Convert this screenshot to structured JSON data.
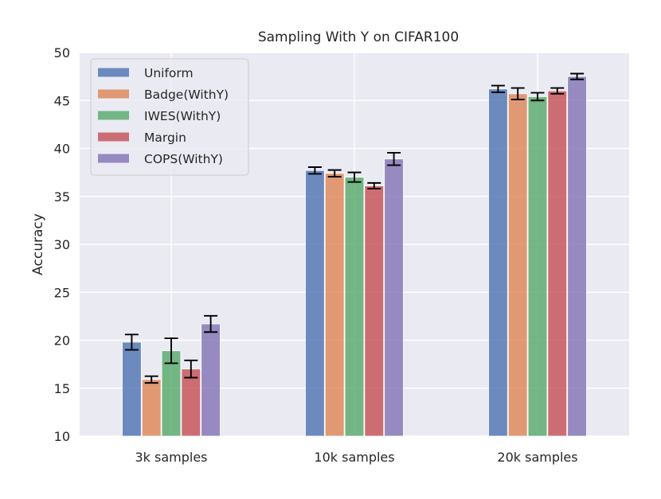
{
  "chart_data": {
    "type": "bar",
    "title": "Sampling With Y on CIFAR100",
    "xlabel": "",
    "ylabel": "Accuracy",
    "ylim": [
      10,
      50
    ],
    "yticks": [
      10,
      15,
      20,
      25,
      30,
      35,
      40,
      45,
      50
    ],
    "grid": true,
    "legend_position": "top-left",
    "categories": [
      "3k samples",
      "10k samples",
      "20k samples"
    ],
    "series": [
      {
        "name": "Uniform",
        "color": "#4c72b0",
        "values": [
          19.8,
          37.7,
          46.2
        ],
        "errors": [
          0.8,
          0.35,
          0.35
        ]
      },
      {
        "name": "Badge(WithY)",
        "color": "#dd8452",
        "values": [
          15.9,
          37.4,
          45.7
        ],
        "errors": [
          0.35,
          0.35,
          0.6
        ]
      },
      {
        "name": "IWES(WithY)",
        "color": "#55a868",
        "values": [
          18.9,
          37.0,
          45.4
        ],
        "errors": [
          1.3,
          0.5,
          0.4
        ]
      },
      {
        "name": "Margin",
        "color": "#c44e52",
        "values": [
          17.0,
          36.1,
          46.0
        ],
        "errors": [
          0.9,
          0.3,
          0.3
        ]
      },
      {
        "name": "COPS(WithY)",
        "color": "#8172b3",
        "values": [
          21.7,
          38.9,
          47.5
        ],
        "errors": [
          0.85,
          0.65,
          0.3
        ]
      }
    ]
  },
  "style": {
    "plot_background": "#eaeaf2",
    "grid_color": "#ffffff",
    "error_bar_color": "#000000",
    "legend_background": "#eaeaf2",
    "legend_border": "#cccccc"
  }
}
